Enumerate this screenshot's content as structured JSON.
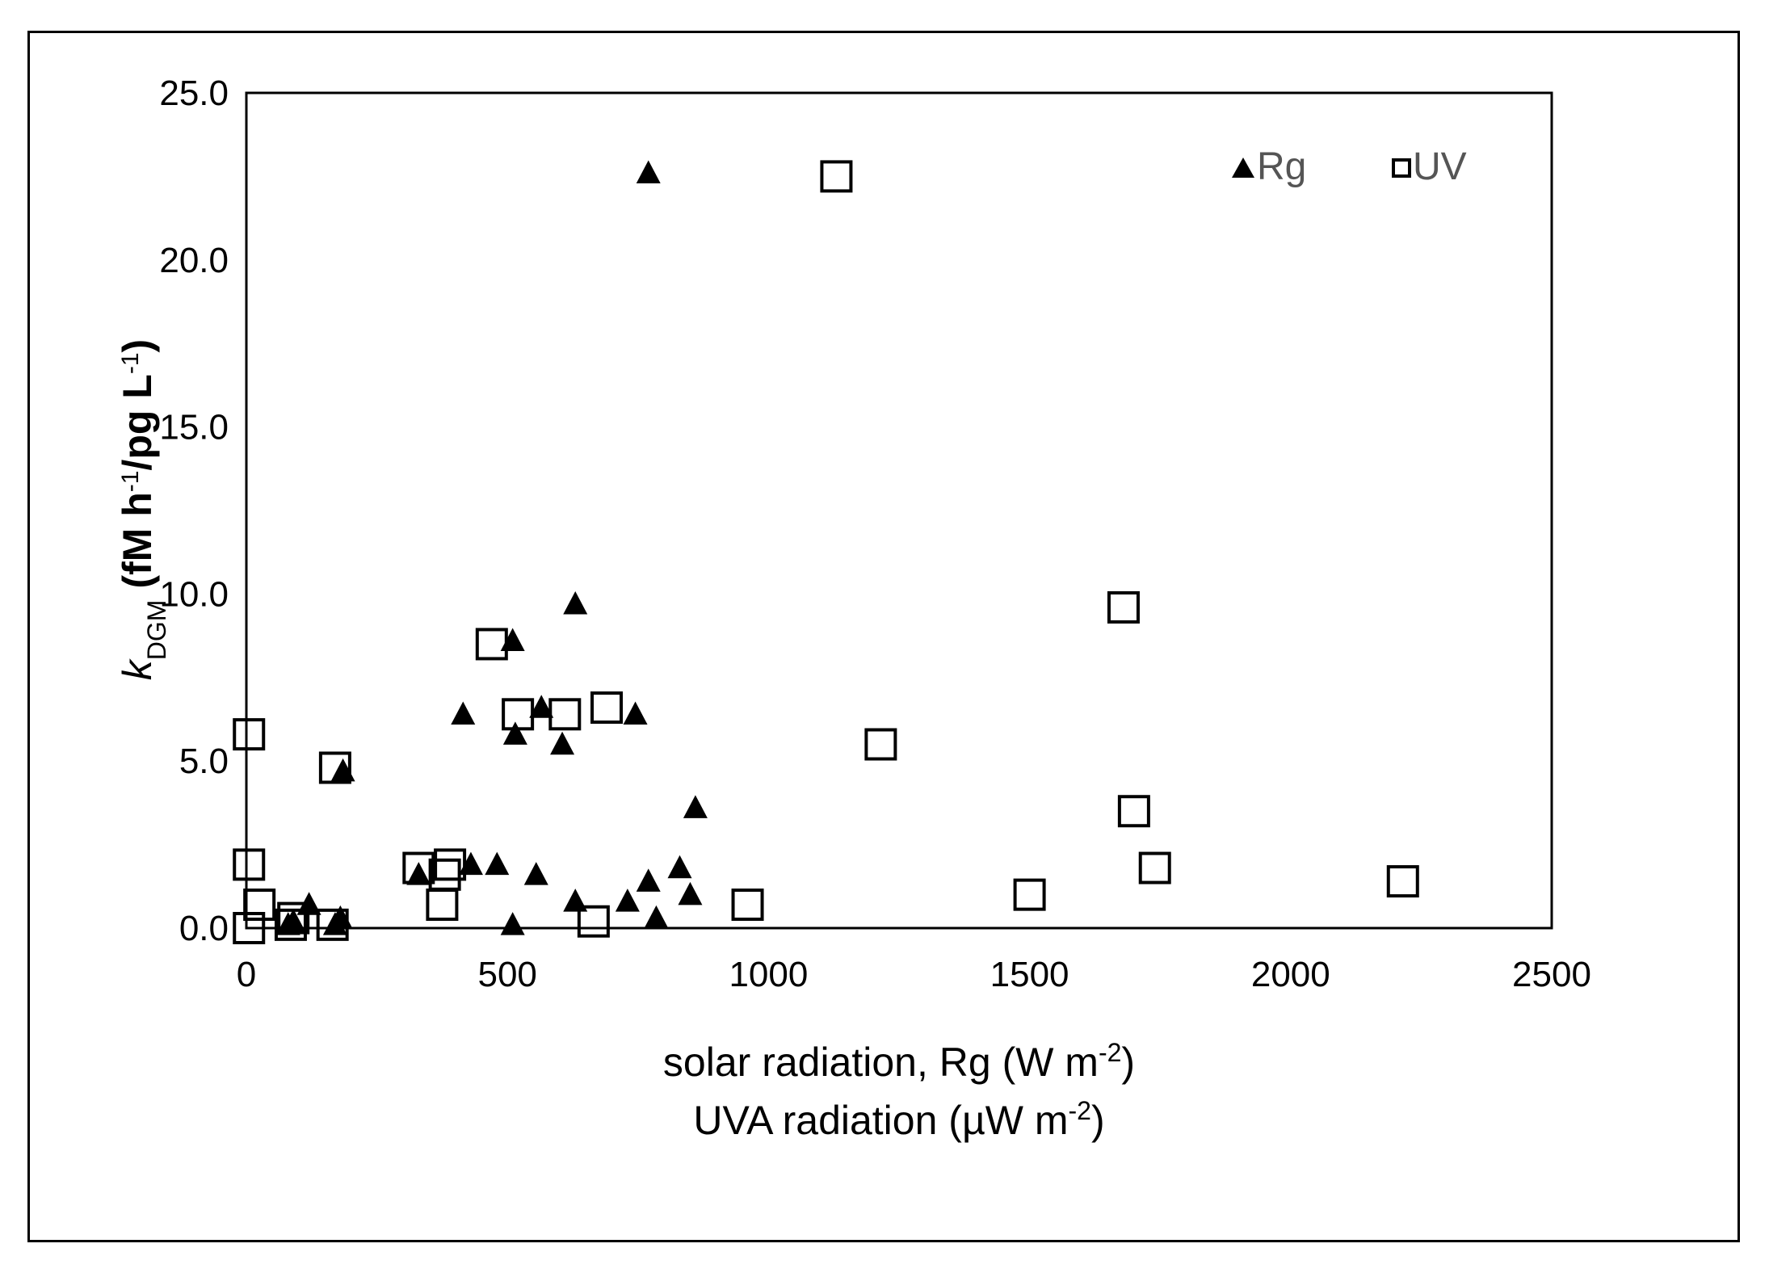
{
  "chart_data": {
    "type": "scatter",
    "title": "",
    "xlabel_line1": {
      "main": "solar radiation, Rg  (W m",
      "sup": "-2",
      "end": ")"
    },
    "xlabel_line2": {
      "main": "UVA  radiation (µW m",
      "sup": "-2",
      "end": ")"
    },
    "ylabel": {
      "italic": "k",
      "sub": "DGM",
      "rest1": " (fM h",
      "sup1": "-1",
      "rest2": "/pg L",
      "sup2": "-1",
      "rest3": ")"
    },
    "xlim": [
      0,
      2500
    ],
    "ylim": [
      0,
      25
    ],
    "xticks": [
      0,
      500,
      1000,
      1500,
      2000,
      2500
    ],
    "xtick_labels": [
      "0",
      "500",
      "1000",
      "1500",
      "2000",
      "2500"
    ],
    "yticks": [
      0,
      5,
      10,
      15,
      20,
      25
    ],
    "ytick_labels": [
      "0.0",
      "5.0",
      "10.0",
      "15.0",
      "20.0",
      "25.0"
    ],
    "legend_position": "top-right",
    "series": [
      {
        "name": "Rg",
        "marker": "triangle",
        "color": "#000000",
        "points": [
          [
            770,
            22.6
          ],
          [
            630,
            9.7
          ],
          [
            510,
            8.6
          ],
          [
            415,
            6.4
          ],
          [
            565,
            6.6
          ],
          [
            745,
            6.4
          ],
          [
            515,
            5.8
          ],
          [
            605,
            5.5
          ],
          [
            185,
            4.7
          ],
          [
            860,
            3.6
          ],
          [
            430,
            1.9
          ],
          [
            480,
            1.9
          ],
          [
            555,
            1.6
          ],
          [
            330,
            1.6
          ],
          [
            830,
            1.8
          ],
          [
            770,
            1.4
          ],
          [
            630,
            0.8
          ],
          [
            730,
            0.8
          ],
          [
            850,
            1.0
          ],
          [
            510,
            0.1
          ],
          [
            785,
            0.3
          ],
          [
            120,
            0.7
          ],
          [
            90,
            0.2
          ],
          [
            180,
            0.3
          ],
          [
            80,
            0.1
          ],
          [
            170,
            0.1
          ]
        ]
      },
      {
        "name": "UV",
        "marker": "square",
        "color": "#000000",
        "points": [
          [
            1130,
            22.5
          ],
          [
            1680,
            9.6
          ],
          [
            470,
            8.5
          ],
          [
            690,
            6.6
          ],
          [
            520,
            6.4
          ],
          [
            610,
            6.4
          ],
          [
            5,
            5.8
          ],
          [
            170,
            4.8
          ],
          [
            1215,
            5.5
          ],
          [
            1700,
            3.5
          ],
          [
            1740,
            1.8
          ],
          [
            5,
            1.9
          ],
          [
            330,
            1.8
          ],
          [
            390,
            1.9
          ],
          [
            380,
            1.6
          ],
          [
            375,
            0.7
          ],
          [
            960,
            0.7
          ],
          [
            1500,
            1.0
          ],
          [
            2215,
            1.4
          ],
          [
            25,
            0.7
          ],
          [
            90,
            0.3
          ],
          [
            85,
            0.1
          ],
          [
            165,
            0.1
          ],
          [
            665,
            0.2
          ],
          [
            5,
            0.0
          ]
        ]
      }
    ]
  }
}
